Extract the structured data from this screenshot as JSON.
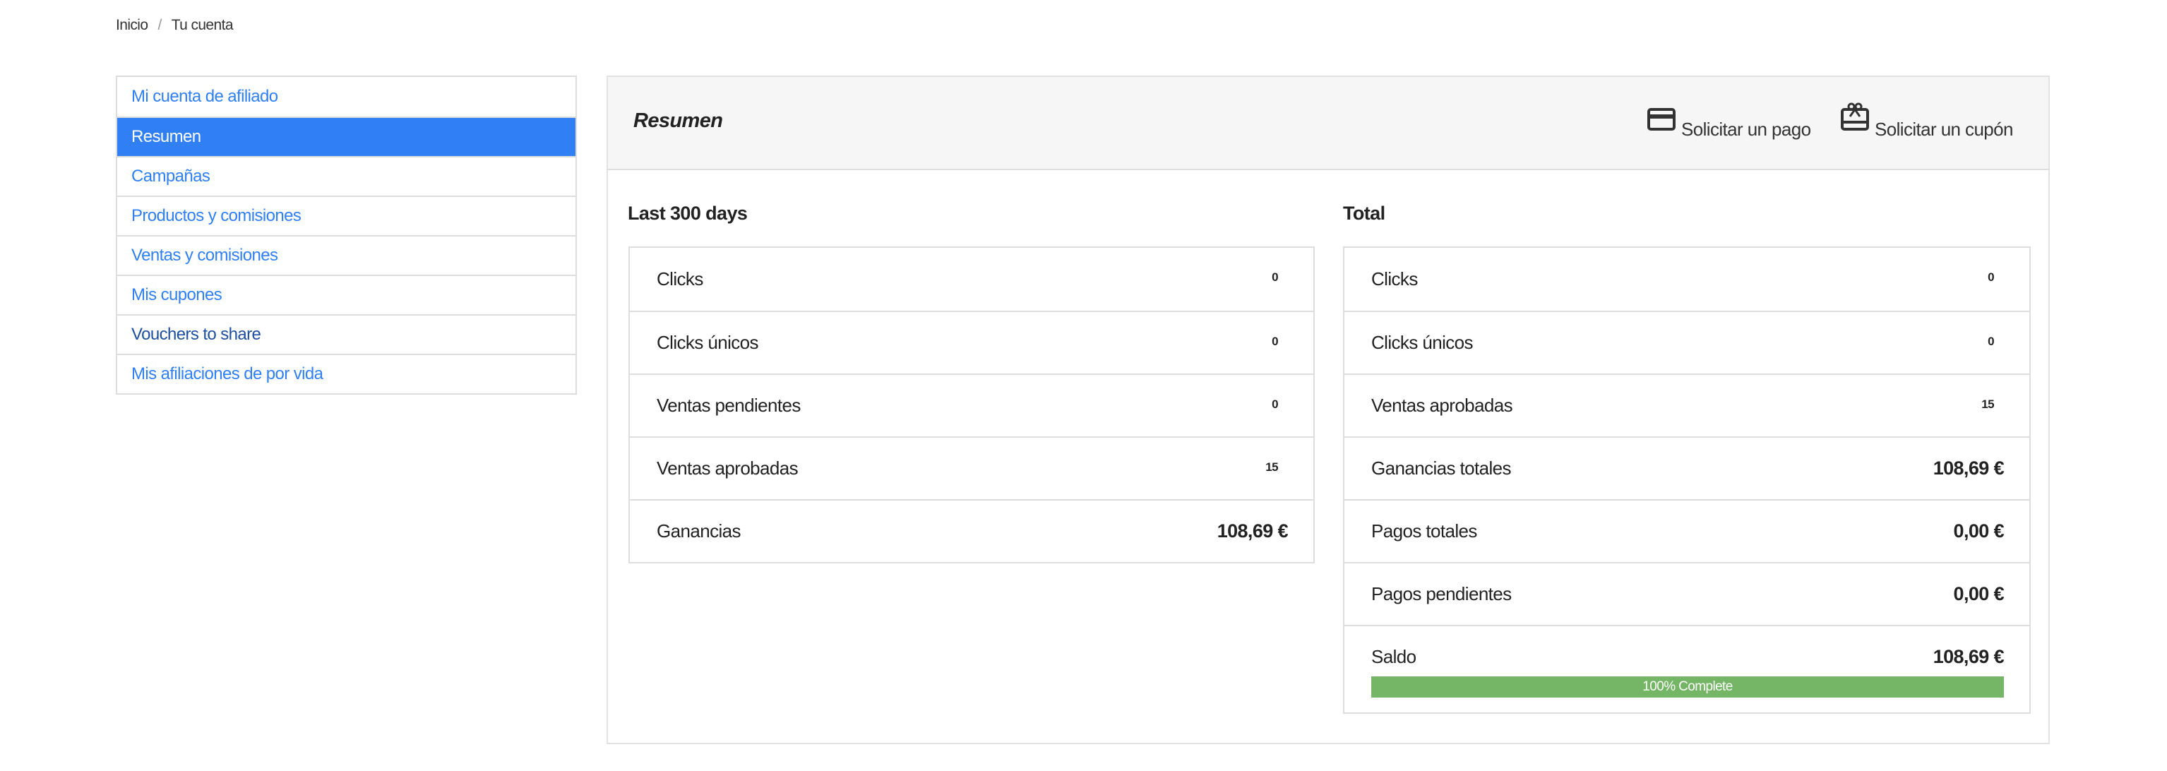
{
  "breadcrumb": {
    "items": [
      "Inicio",
      "Tu cuenta"
    ],
    "separator": "/"
  },
  "sidebar": {
    "items": [
      {
        "label": "Mi cuenta de afiliado"
      },
      {
        "label": "Resumen",
        "active": true
      },
      {
        "label": "Campañas"
      },
      {
        "label": "Productos y comisiones"
      },
      {
        "label": "Ventas y comisiones"
      },
      {
        "label": "Mis cupones"
      },
      {
        "label": "Vouchers to share"
      },
      {
        "label": "Mis afiliaciones de por vida"
      }
    ]
  },
  "colors": {
    "accent": "#307ff4",
    "link": "#2f7ff5",
    "progress": "#74b566"
  },
  "header": {
    "title": "Resumen",
    "request_payment": "Solicitar un pago",
    "request_payment_icon": "credit-card-icon",
    "request_coupon": "Solicitar un cupón",
    "request_coupon_icon": "gift-card-icon"
  },
  "last": {
    "title": "Last 300 days",
    "rows": [
      {
        "label": "Clicks",
        "value": "0"
      },
      {
        "label": "Clicks únicos",
        "value": "0"
      },
      {
        "label": "Ventas pendientes",
        "value": "0"
      },
      {
        "label": "Ventas aprobadas",
        "value": "15"
      },
      {
        "label": "Ganancias",
        "value": "108,69 €"
      }
    ]
  },
  "total": {
    "title": "Total",
    "rows": [
      {
        "label": "Clicks",
        "value": "0"
      },
      {
        "label": "Clicks únicos",
        "value": "0"
      },
      {
        "label": "Ventas aprobadas",
        "value": "15"
      },
      {
        "label": "Ganancias totales",
        "value": "108,69 €"
      },
      {
        "label": "Pagos totales",
        "value": "0,00 €"
      },
      {
        "label": "Pagos pendientes",
        "value": "0,00 €"
      },
      {
        "label": "Saldo",
        "value": "108,69 €"
      }
    ],
    "progress": {
      "percent": 100,
      "label": "100% Complete"
    }
  }
}
